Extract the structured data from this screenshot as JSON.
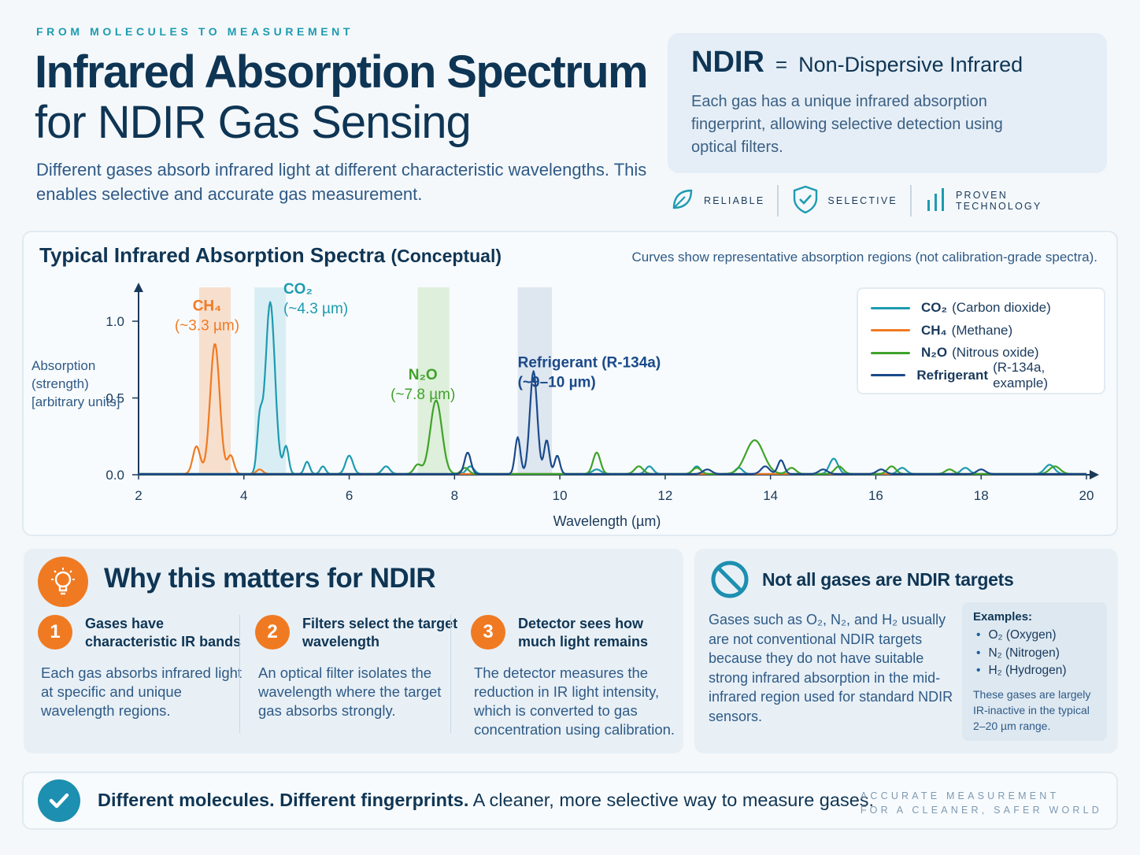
{
  "header": {
    "eyebrow": "FROM MOLECULES TO MEASUREMENT",
    "title_line1": "Infrared Absorption Spectrum",
    "title_line2": "for NDIR Gas Sensing",
    "subtitle": "Different gases absorb infrared light at different characteristic wavelengths. This enables selective and accurate gas measurement."
  },
  "ndir_box": {
    "abbr": "NDIR",
    "equals": "=",
    "full": "Non-Dispersive Infrared",
    "description": "Each gas has a unique infrared absorption fingerprint, allowing selective detection using optical filters."
  },
  "badges": [
    {
      "label": "RELIABLE",
      "icon": "leaf-icon"
    },
    {
      "label": "SELECTIVE",
      "icon": "shield-check-icon"
    },
    {
      "label": "PROVEN TECHNOLOGY",
      "icon": "bars-icon"
    }
  ],
  "chart_panel": {
    "title": "Typical Infrared Absorption Spectra",
    "title_suffix": "(Conceptual)",
    "note": "Curves show representative absorption regions (not calibration-grade spectra)."
  },
  "legend": [
    {
      "formula": "CO₂",
      "name": "(Carbon dioxide)",
      "color": "#1d9bb0"
    },
    {
      "formula": "CH₄",
      "name": "(Methane)",
      "color": "#f07a22"
    },
    {
      "formula": "N₂O",
      "name": "(Nitrous oxide)",
      "color": "#3fa22a"
    },
    {
      "formula": "Refrigerant",
      "name": "(R-134a, example)",
      "color": "#1a4a8a"
    }
  ],
  "chart_data": {
    "type": "line",
    "xlabel": "Wavelength (µm)",
    "ylabel_lines": [
      "Absorption",
      "(strength)",
      "[arbitrary units]"
    ],
    "xlim": [
      2,
      20
    ],
    "ylim": [
      0,
      1.0
    ],
    "x_ticks": [
      2,
      4,
      6,
      8,
      10,
      12,
      14,
      16,
      18,
      20
    ],
    "y_ticks": [
      {
        "value": 0.0,
        "label": "0.0"
      },
      {
        "value": 0.5,
        "label": "0.5"
      },
      {
        "value": 1.0,
        "label": "1.0"
      }
    ],
    "bands": [
      {
        "x0": 3.15,
        "x1": 3.75,
        "color": "#f5c9a8"
      },
      {
        "x0": 4.2,
        "x1": 4.8,
        "color": "#bfe4ec"
      },
      {
        "x0": 7.3,
        "x1": 7.9,
        "color": "#c8e6c0"
      },
      {
        "x0": 9.2,
        "x1": 9.85,
        "color": "#c9d6e6"
      }
    ],
    "annotations": [
      {
        "line1": "CH₄",
        "line2": "(~3.3 µm)",
        "x": 3.3,
        "y": 1.07,
        "color": "#f07a22",
        "anchor": "middle"
      },
      {
        "line1": "CO₂",
        "line2": "(~4.3 µm)",
        "x": 4.75,
        "y": 1.18,
        "color": "#1d9bb0",
        "anchor": "start"
      },
      {
        "line1": "N₂O",
        "line2": "(~7.8 µm)",
        "x": 7.4,
        "y": 0.62,
        "color": "#3fa22a",
        "anchor": "middle"
      },
      {
        "line1": "Refrigerant (R-134a)",
        "line2": "(~9–10 µm)",
        "x": 9.2,
        "y": 0.7,
        "color": "#1a4a8a",
        "anchor": "start"
      }
    ],
    "series": [
      {
        "name": "CO₂",
        "color": "#1d9bb0",
        "peaks": [
          [
            4.5,
            1.12,
            0.09
          ],
          [
            4.3,
            0.32,
            0.05
          ],
          [
            4.8,
            0.18,
            0.05
          ],
          [
            5.2,
            0.08,
            0.05
          ],
          [
            5.5,
            0.05,
            0.05
          ],
          [
            6.0,
            0.12,
            0.07
          ],
          [
            6.7,
            0.05,
            0.07
          ],
          [
            8.3,
            0.05,
            0.07
          ],
          [
            10.7,
            0.03,
            0.08
          ],
          [
            11.7,
            0.05,
            0.07
          ],
          [
            12.6,
            0.05,
            0.07
          ],
          [
            13.4,
            0.04,
            0.07
          ],
          [
            15.2,
            0.1,
            0.08
          ],
          [
            16.5,
            0.04,
            0.08
          ],
          [
            17.7,
            0.04,
            0.08
          ],
          [
            19.3,
            0.06,
            0.09
          ]
        ]
      },
      {
        "name": "CH₄",
        "color": "#f07a22",
        "peaks": [
          [
            3.45,
            0.85,
            0.09
          ],
          [
            3.1,
            0.18,
            0.07
          ],
          [
            3.75,
            0.12,
            0.06
          ],
          [
            4.3,
            0.03,
            0.06
          ]
        ]
      },
      {
        "name": "N₂O",
        "color": "#3fa22a",
        "peaks": [
          [
            7.65,
            0.48,
            0.11
          ],
          [
            7.3,
            0.06,
            0.07
          ],
          [
            8.2,
            0.04,
            0.07
          ],
          [
            10.7,
            0.14,
            0.07
          ],
          [
            11.5,
            0.05,
            0.08
          ],
          [
            12.6,
            0.04,
            0.08
          ],
          [
            13.7,
            0.22,
            0.17
          ],
          [
            14.4,
            0.04,
            0.08
          ],
          [
            15.3,
            0.05,
            0.08
          ],
          [
            16.3,
            0.05,
            0.08
          ],
          [
            17.4,
            0.03,
            0.08
          ],
          [
            19.4,
            0.05,
            0.1
          ]
        ]
      },
      {
        "name": "Refrigerant",
        "color": "#1a4a8a",
        "peaks": [
          [
            9.5,
            0.67,
            0.07
          ],
          [
            9.2,
            0.24,
            0.05
          ],
          [
            9.75,
            0.22,
            0.05
          ],
          [
            9.95,
            0.12,
            0.05
          ],
          [
            8.25,
            0.14,
            0.06
          ],
          [
            12.8,
            0.03,
            0.08
          ],
          [
            13.9,
            0.05,
            0.08
          ],
          [
            14.2,
            0.09,
            0.06
          ],
          [
            15.0,
            0.03,
            0.08
          ],
          [
            16.1,
            0.03,
            0.08
          ],
          [
            18.0,
            0.03,
            0.08
          ]
        ]
      }
    ]
  },
  "why": {
    "title": "Why this matters for NDIR",
    "steps": [
      {
        "num": "1",
        "head": "Gases have characteristic IR bands",
        "body": "Each gas absorbs infrared light at specific and unique wavelength regions."
      },
      {
        "num": "2",
        "head": "Filters select the target wavelength",
        "body": "An optical filter isolates the wavelength where the target gas absorbs strongly."
      },
      {
        "num": "3",
        "head": "Detector sees how much light remains",
        "body": "The detector measures the reduction in IR light intensity, which is converted to gas concentration using calibration."
      }
    ]
  },
  "not_targets": {
    "title": "Not all gases are NDIR targets",
    "body": "Gases such as O₂, N₂, and H₂ usually are not conventional NDIR targets because they do not have suitable strong infrared absorption in the mid-infrared region used for standard NDIR sensors.",
    "examples_title": "Examples:",
    "examples": [
      "O₂  (Oxygen)",
      "N₂  (Nitrogen)",
      "H₂  (Hydrogen)"
    ],
    "examples_note": "These gases are largely IR-inactive in the typical 2–20 µm range."
  },
  "footer": {
    "bold_text": "Different molecules.  Different fingerprints.",
    "text": "A cleaner, more selective way to measure gases.",
    "tag_line1": "ACCURATE MEASUREMENT",
    "tag_line2": "FOR A CLEANER, SAFER WORLD"
  }
}
